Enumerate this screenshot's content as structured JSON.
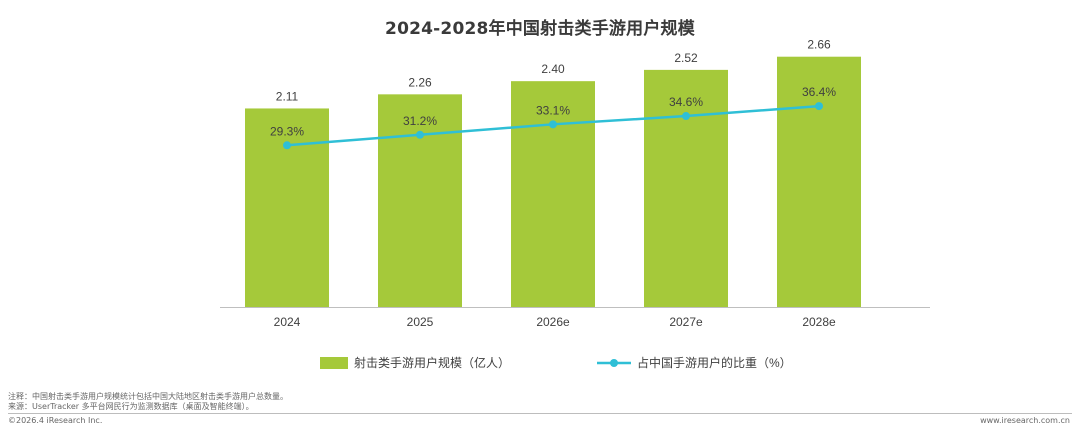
{
  "title": "2024-2028年中国射击类手游用户规模",
  "chart_data": {
    "type": "bar",
    "categories": [
      "2024",
      "2025",
      "2026e",
      "2027e",
      "2028e"
    ],
    "series": [
      {
        "name": "射击类手游用户规模（亿人）",
        "type": "bar",
        "axis": "left",
        "color": "#a5c93a",
        "values": [
          2.11,
          2.26,
          2.4,
          2.52,
          2.66
        ],
        "labels": [
          "2.11",
          "2.26",
          "2.40",
          "2.52",
          "2.66"
        ]
      },
      {
        "name": "占中国手游用户的比重（%）",
        "type": "line",
        "axis": "right",
        "color": "#2fbfd6",
        "values": [
          29.3,
          31.2,
          33.1,
          34.6,
          36.4
        ],
        "labels": [
          "29.3%",
          "31.2%",
          "33.1%",
          "34.6%",
          "36.4%"
        ]
      }
    ],
    "ylim_bar": [
      0,
      3.05
    ],
    "ylim_line": [
      0,
      52
    ],
    "legend_position": "bottom",
    "grid": false
  },
  "footnotes": {
    "note": "注释：中国射击类手游用户规模统计包括中国大陆地区射击类手游用户总数量。",
    "source": "来源：UserTracker 多平台网民行为监测数据库（桌面及智能终端）。"
  },
  "footer": {
    "copyright": "©2026.4 iResearch Inc.",
    "website": "www.iresearch.com.cn"
  }
}
